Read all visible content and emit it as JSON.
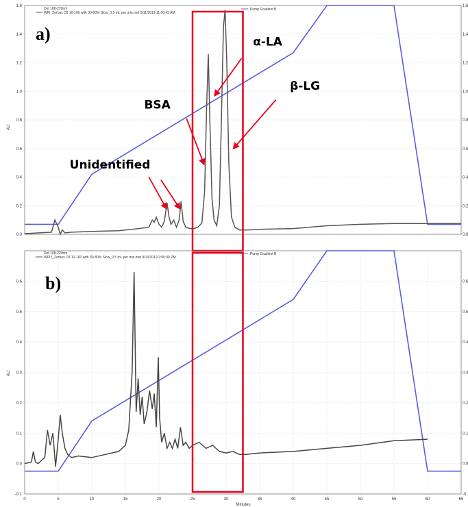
{
  "chart_data": [
    {
      "type": "line",
      "panel_label": "a)",
      "header_detector": "Det 168-220nm",
      "header_run": "WPI_Zorbax C8 10-100 with 30-80% Slow_0.5 mL per min.met 9/11/2019 11:00:43 AM",
      "legend_right": "Pump Gradient B",
      "ylabel": "AU",
      "xlim": [
        0,
        65
      ],
      "ylim": [
        0,
        1.6
      ],
      "yticks": [
        0.0,
        0.2,
        0.4,
        0.6,
        0.8,
        1.0,
        1.2,
        1.4,
        1.6
      ],
      "ytick_labels": [
        "0.0",
        "0.2",
        "0.4",
        "0.6",
        "0.8",
        "1.0",
        "1.2",
        "1.4",
        "1.6"
      ],
      "series": [
        {
          "color": "#555555",
          "x": [
            0,
            4,
            4.5,
            5,
            5.3,
            5.6,
            6,
            7,
            10,
            14,
            17,
            18.5,
            19,
            19.3,
            19.6,
            20,
            20.4,
            20.8,
            21.2,
            21.5,
            21.8,
            22.2,
            22.6,
            23,
            23.3,
            23.6,
            24,
            24.6,
            25.2,
            25.8,
            26.4,
            26.8,
            27.1,
            27.35,
            27.6,
            27.9,
            28.2,
            28.6,
            29,
            29.3,
            29.6,
            29.85,
            30.1,
            30.4,
            30.8,
            31.3,
            32,
            33,
            35,
            40,
            45,
            50,
            55,
            60,
            65
          ],
          "y": [
            0.005,
            0.015,
            0.1,
            0.05,
            -0.02,
            0.03,
            0.01,
            0.015,
            0.02,
            0.025,
            0.04,
            0.05,
            0.1,
            0.085,
            0.12,
            0.07,
            0.05,
            0.09,
            0.22,
            0.12,
            0.07,
            0.1,
            0.05,
            0.1,
            0.23,
            0.09,
            0.05,
            0.04,
            0.04,
            0.05,
            0.08,
            0.3,
            0.9,
            1.26,
            0.75,
            0.25,
            0.1,
            0.06,
            0.2,
            0.8,
            1.45,
            1.57,
            1.2,
            0.5,
            0.12,
            0.05,
            0.03,
            0.03,
            0.035,
            0.04,
            0.06,
            0.07,
            0.075,
            0.075,
            0.075
          ]
        },
        {
          "name": "Pump Gradient B",
          "color": "#5a5ce0",
          "x": [
            0,
            5,
            10,
            40,
            45,
            55,
            60,
            65
          ],
          "y": [
            0.07,
            0.07,
            0.42,
            1.27,
            1.6,
            1.6,
            0.07,
            0.07
          ]
        }
      ],
      "highlight_box_x": [
        25,
        32.5
      ],
      "annotations": [
        {
          "text": "α-LA",
          "text_at": [
            34,
            1.32
          ],
          "arrow_from": [
            32.3,
            1.23
          ],
          "arrow_to": [
            28.3,
            0.97
          ]
        },
        {
          "text": "β-LG",
          "text_at": [
            39.5,
            1.01
          ],
          "arrow_from": [
            37.4,
            0.94
          ],
          "arrow_to": [
            31.1,
            0.6
          ]
        },
        {
          "text": "BSA",
          "text_at": [
            17.8,
            0.88
          ],
          "arrow_from": [
            24.1,
            0.81
          ],
          "arrow_to": [
            26.7,
            0.49
          ]
        },
        {
          "text": "Unidentified",
          "text_at": [
            6.7,
            0.46
          ],
          "arrow_from": [
            18.5,
            0.4
          ],
          "arrow_to": [
            21.1,
            0.18
          ]
        },
        {
          "arrow_from": [
            20.3,
            0.38
          ],
          "arrow_to": [
            23.1,
            0.18
          ]
        }
      ]
    },
    {
      "type": "line",
      "panel_label": "b)",
      "header_detector": "Det 168-220nm",
      "header_run": "WPI2_Zorbax C8 10-100 with 30-80% Slow_0.5 mL per min.met 9/10/2019 2:06:00 PM",
      "legend_right": "Pump Gradient B",
      "ylabel": "AU",
      "xlabel": "Minutes",
      "xlim": [
        0,
        65
      ],
      "ylim": [
        -0.1,
        0.7
      ],
      "xticks": [
        0,
        5,
        10,
        15,
        20,
        25,
        30,
        35,
        40,
        45,
        50,
        55,
        60,
        65
      ],
      "xtick_labels": [
        "0",
        "5",
        "10",
        "15",
        "20",
        "25",
        "30",
        "35",
        "40",
        "45",
        "50",
        "55",
        "60",
        "65"
      ],
      "yticks": [
        -0.1,
        0.0,
        0.1,
        0.2,
        0.3,
        0.4,
        0.5,
        0.6
      ],
      "ytick_labels": [
        "-0.1",
        "0.0",
        "0.1",
        "0.2",
        "0.3",
        "0.4",
        "0.5",
        "0.6"
      ],
      "series": [
        {
          "color": "#444444",
          "x": [
            0,
            1,
            1.3,
            1.6,
            2,
            3,
            3.4,
            3.8,
            4.2,
            4.6,
            5,
            5.3,
            5.6,
            6,
            6.4,
            7,
            8,
            10,
            12,
            14,
            15,
            15.5,
            16,
            16.3,
            16.6,
            16.9,
            17.2,
            17.5,
            17.8,
            18.2,
            18.6,
            19,
            19.3,
            19.6,
            19.9,
            20.1,
            20.4,
            20.8,
            21.2,
            21.6,
            22,
            22.4,
            22.8,
            23.2,
            23.6,
            24,
            24.5,
            25,
            26,
            27,
            28,
            29,
            30,
            31,
            32,
            33,
            35,
            40,
            45,
            50,
            55,
            60
          ],
          "y": [
            0,
            0.005,
            0.04,
            0.005,
            0,
            0.02,
            0.11,
            0.06,
            0.1,
            -0.01,
            0.08,
            0.16,
            0.1,
            0.05,
            0.03,
            0.02,
            0.025,
            0.02,
            0.03,
            0.04,
            0.06,
            0.11,
            0.3,
            0.63,
            0.17,
            0.28,
            0.16,
            0.22,
            0.13,
            0.17,
            0.24,
            0.18,
            0.23,
            0.12,
            0.35,
            0.15,
            0.07,
            0.1,
            0.05,
            0.07,
            0.05,
            0.08,
            0.05,
            0.12,
            0.06,
            0.07,
            0.05,
            0.06,
            0.07,
            0.05,
            0.06,
            0.04,
            0.035,
            0.04,
            0.03,
            0.03,
            0.035,
            0.04,
            0.05,
            0.06,
            0.075,
            0.08
          ]
        },
        {
          "name": "Pump Gradient B",
          "color": "#5a5ce0",
          "x": [
            0,
            5,
            10,
            40,
            45,
            55,
            60,
            65
          ],
          "y": [
            -0.025,
            -0.025,
            0.14,
            0.54,
            0.74,
            0.74,
            -0.025,
            -0.025
          ]
        }
      ],
      "highlight_box_x": [
        25,
        32.5
      ]
    }
  ]
}
